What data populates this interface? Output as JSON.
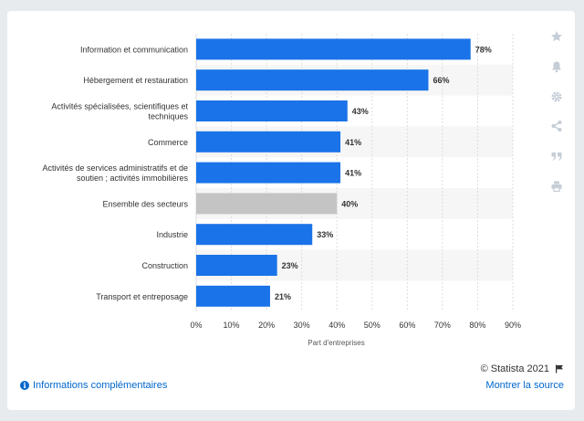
{
  "colors": {
    "bar": "#1a73e8",
    "highlight": "#c4c4c4",
    "grid": "#dddddd",
    "band": "#f6f6f6",
    "icon": "#c5cdd6",
    "link": "#0066cc"
  },
  "sidebar": {
    "icons": [
      "star-icon",
      "bell-icon",
      "gear-icon",
      "share-icon",
      "quote-icon",
      "print-icon"
    ]
  },
  "chart_data": {
    "type": "bar",
    "orientation": "horizontal",
    "categories": [
      "Information et communication",
      "Hébergement et restauration",
      "Activités spécialisées, scientifiques et techniques",
      "Commerce",
      "Activités de services administratifs et de soutien ; activités immobilières",
      "Ensemble des secteurs",
      "Industrie",
      "Construction",
      "Transport et entreposage"
    ],
    "category_lines": [
      [
        "Information et communication"
      ],
      [
        "Hébergement et restauration"
      ],
      [
        "Activités spécialisées, scientifiques et",
        "techniques"
      ],
      [
        "Commerce"
      ],
      [
        "Activités de services administratifs et de",
        "soutien ; activités immobilières"
      ],
      [
        "Ensemble des secteurs"
      ],
      [
        "Industrie"
      ],
      [
        "Construction"
      ],
      [
        "Transport et entreposage"
      ]
    ],
    "values": [
      78,
      66,
      43,
      41,
      41,
      40,
      33,
      23,
      21
    ],
    "value_labels": [
      "78%",
      "66%",
      "43%",
      "41%",
      "41%",
      "40%",
      "33%",
      "23%",
      "21%"
    ],
    "highlight_category": "Ensemble des secteurs",
    "xlim": [
      0,
      90
    ],
    "xticks": [
      0,
      10,
      20,
      30,
      40,
      50,
      60,
      70,
      80,
      90
    ],
    "xtick_labels": [
      "0%",
      "10%",
      "20%",
      "30%",
      "40%",
      "50%",
      "60%",
      "70%",
      "80%",
      "90%"
    ],
    "xlabel": "Part d'entreprises",
    "ylabel": "",
    "grid": true
  },
  "footer": {
    "copyright": "© Statista 2021",
    "info_link": "Informations complémentaires",
    "source_link": "Montrer la source"
  }
}
